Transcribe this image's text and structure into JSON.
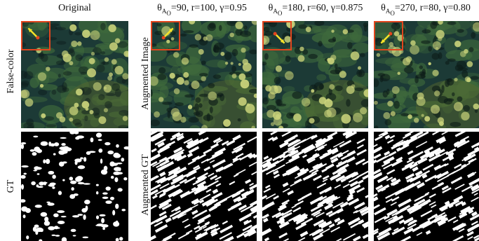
{
  "columns": {
    "original": "Original",
    "aug1": {
      "theta": "θ",
      "sub": "A",
      "subsub": "O",
      "rest": "=90, r=100, γ=0.95"
    },
    "aug2": {
      "theta": "θ",
      "sub": "A",
      "subsub": "O",
      "rest": "=180, r=60, γ=0.875"
    },
    "aug3": {
      "theta": "θ",
      "sub": "A",
      "subsub": "O",
      "rest": "=270, r=80, γ=0.80"
    }
  },
  "rows": {
    "false_color": "False-color",
    "augmented_image": "Augmented Image",
    "gt": "GT",
    "augmented_gt": "Augmented GT"
  },
  "colors": {
    "inset_box": "#e2461e",
    "arrow": "#f5e22a",
    "arrow_origin": "#e2461e",
    "forest_dark": "#1c3a36",
    "forest_mid": "#3f6a3c",
    "crown": "#c9d27a"
  },
  "arrows": [
    {
      "panel": "original",
      "direction_deg": 135
    },
    {
      "panel": "aug1",
      "direction_deg": 45
    },
    {
      "panel": "aug2",
      "direction_deg": 315
    },
    {
      "panel": "aug3",
      "direction_deg": 225
    }
  ]
}
